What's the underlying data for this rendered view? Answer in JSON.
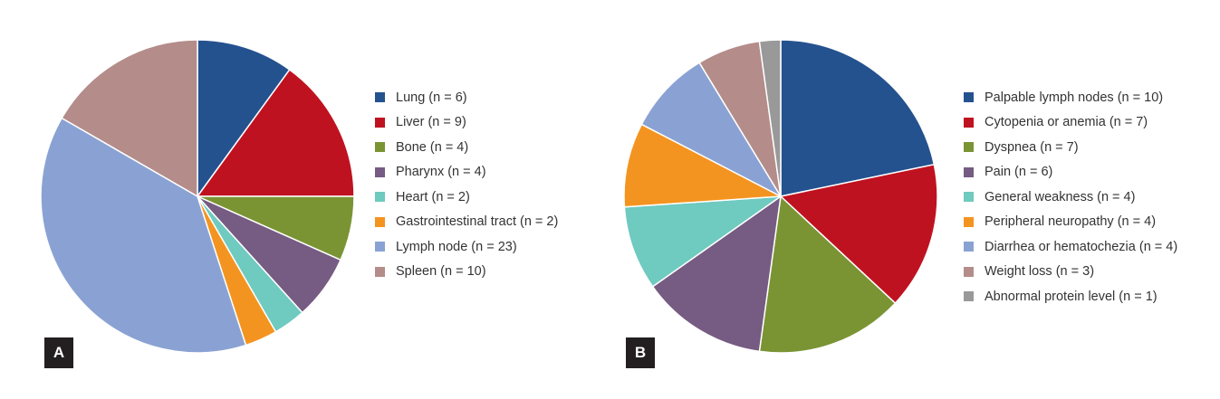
{
  "chart_data": [
    {
      "type": "pie",
      "panel_label": "A",
      "slices": [
        {
          "label": "Lung (n = 6)",
          "value": 6,
          "color": "#24528f"
        },
        {
          "label": "Liver (n = 9)",
          "value": 9,
          "color": "#bf1220"
        },
        {
          "label": "Bone (n = 4)",
          "value": 4,
          "color": "#7a9434"
        },
        {
          "label": "Pharynx (n = 4)",
          "value": 4,
          "color": "#765b82"
        },
        {
          "label": "Heart (n = 2)",
          "value": 2,
          "color": "#6fcac0"
        },
        {
          "label": "Gastrointestinal tract (n = 2)",
          "value": 2,
          "color": "#f49420"
        },
        {
          "label": "Lymph node (n = 23)",
          "value": 23,
          "color": "#8aa2d3"
        },
        {
          "label": "Spleen (n = 10)",
          "value": 10,
          "color": "#b48c8a"
        }
      ],
      "start": "top",
      "direction": "clockwise",
      "legend_position": "right"
    },
    {
      "type": "pie",
      "panel_label": "B",
      "slices": [
        {
          "label": "Palpable lymph nodes (n = 10)",
          "value": 10,
          "color": "#24528f"
        },
        {
          "label": "Cytopenia or anemia (n = 7)",
          "value": 7,
          "color": "#bf1220"
        },
        {
          "label": "Dyspnea (n = 7)",
          "value": 7,
          "color": "#7a9434"
        },
        {
          "label": "Pain (n = 6)",
          "value": 6,
          "color": "#765b82"
        },
        {
          "label": "General weakness (n = 4)",
          "value": 4,
          "color": "#6fcac0"
        },
        {
          "label": "Peripheral neuropathy (n = 4)",
          "value": 4,
          "color": "#f49420"
        },
        {
          "label": "Diarrhea or hematochezia (n = 4)",
          "value": 4,
          "color": "#8aa2d3"
        },
        {
          "label": "Weight loss (n = 3)",
          "value": 3,
          "color": "#b48c8a"
        },
        {
          "label": "Abnormal protein level (n = 1)",
          "value": 1,
          "color": "#999999"
        }
      ],
      "start": "top",
      "direction": "clockwise",
      "legend_position": "right"
    }
  ]
}
